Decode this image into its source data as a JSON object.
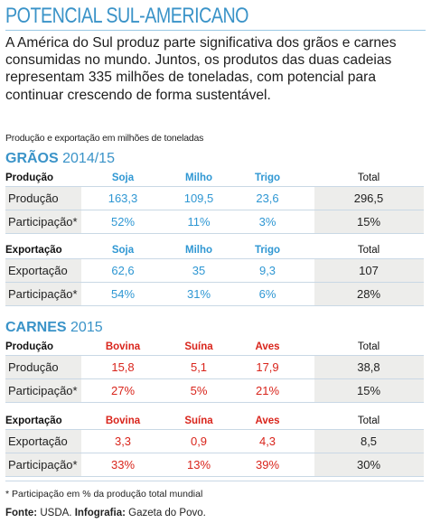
{
  "title": "POTENCIAL SUL-AMERICANO",
  "intro": "A América do Sul produz parte significativa dos grãos e carnes consumidas no mundo. Juntos, os produtos das duas cadeias representam 335 milhões de toneladas, com potencial para continuar crescendo de forma sustentável.",
  "units": "Produção e exportação em milhões de toneladas",
  "graos": {
    "title_bold": "GRÃOS",
    "title_year": "2014/15",
    "producao": {
      "header": [
        "Produção",
        "Soja",
        "Milho",
        "Trigo",
        "Total"
      ],
      "rows": [
        [
          "Produção",
          "163,3",
          "109,5",
          "23,6",
          "296,5"
        ],
        [
          "Participação*",
          "52%",
          "11%",
          "3%",
          "15%"
        ]
      ]
    },
    "exportacao": {
      "header": [
        "Exportação",
        "Soja",
        "Milho",
        "Trigo",
        "Total"
      ],
      "rows": [
        [
          "Exportação",
          "62,6",
          "35",
          "9,3",
          "107"
        ],
        [
          "Participação*",
          "54%",
          "31%",
          "6%",
          "28%"
        ]
      ]
    }
  },
  "carnes": {
    "title_bold": "CARNES",
    "title_year": "2015",
    "producao": {
      "header": [
        "Produção",
        "Bovina",
        "Suína",
        "Aves",
        "Total"
      ],
      "rows": [
        [
          "Produção",
          "15,8",
          "5,1",
          "17,9",
          "38,8"
        ],
        [
          "Participação*",
          "27%",
          "5%",
          "21%",
          "15%"
        ]
      ]
    },
    "exportacao": {
      "header": [
        "Exportação",
        "Bovina",
        "Suína",
        "Aves",
        "Total"
      ],
      "rows": [
        [
          "Exportação",
          "3,3",
          "0,9",
          "4,3",
          "8,5"
        ],
        [
          "Participação*",
          "33%",
          "13%",
          "39%",
          "30%"
        ]
      ]
    }
  },
  "footnote": "* Participação em % da produção total mundial",
  "source": {
    "label1": "Fonte:",
    "text1": "USDA.",
    "label2": "Infografia:",
    "text2": "Gazeta do Povo."
  },
  "colors": {
    "title": "#3a93c8",
    "grain_header": "#2f97d3",
    "meat_header": "#d9251c",
    "shade": "#ededeb"
  }
}
